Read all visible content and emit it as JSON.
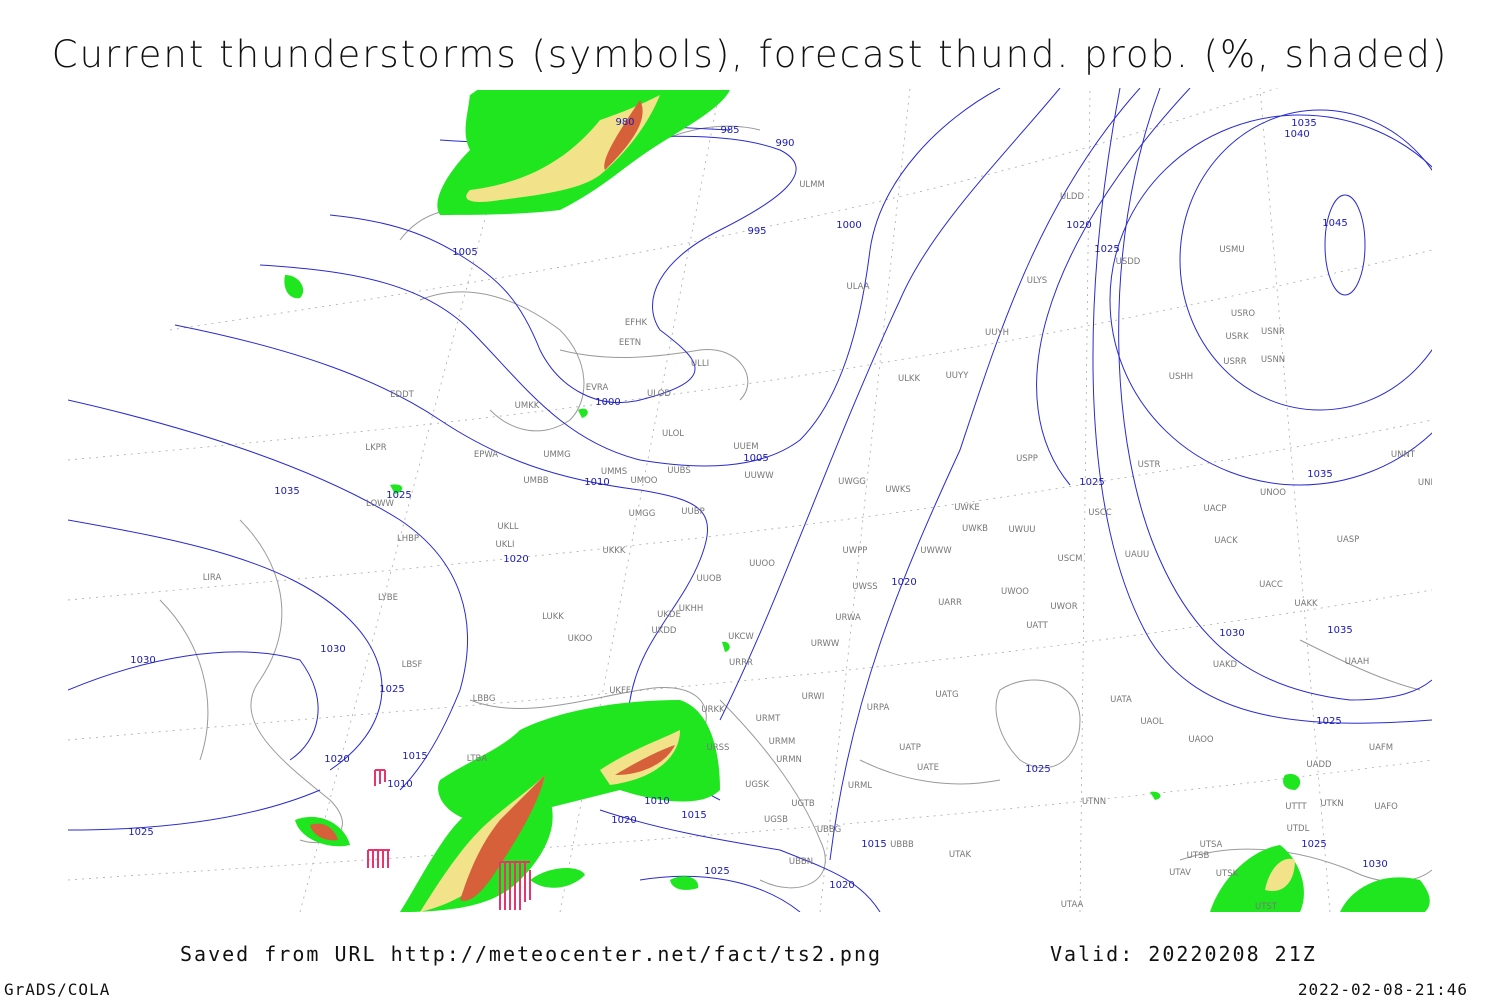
{
  "title": "Current thunderstorms (symbols), forecast thund. prob. (%, shaded)",
  "footer": {
    "saved": "Saved from URL http://meteocenter.net/fact/ts2.png",
    "valid": "Valid: 20220208 21Z",
    "software": "GrADS/COLA",
    "timestamp": "2022-02-08-21:46"
  },
  "isobar_labels": [
    "980",
    "985",
    "990",
    "995",
    "1000",
    "1005",
    "1020",
    "1025",
    "1035",
    "1040",
    "1045",
    "1000",
    "1005",
    "1010",
    "1035",
    "1025",
    "1020",
    "1025",
    "1035",
    "1020",
    "1030",
    "1035",
    "1030",
    "1030",
    "1025",
    "1025",
    "1025",
    "1020",
    "1015",
    "1010",
    "1010",
    "1015",
    "1020",
    "1025",
    "1015",
    "1025",
    "1020",
    "1025",
    "1030"
  ],
  "stations": [
    "ULMM",
    "ULDD",
    "USDD",
    "USMU",
    "ULAA",
    "ULLI",
    "EFHK",
    "EETN",
    "EVRA",
    "ULOD",
    "EDDT",
    "UMKK",
    "ULOL",
    "UUEM",
    "EPWA",
    "UMMG",
    "LKPR",
    "UMMS",
    "UUBS",
    "UUWW",
    "UMBB",
    "UMOO",
    "UWGG",
    "UWKS",
    "UWKE",
    "USCC",
    "UACP",
    "UNOO",
    "UNBB",
    "USTR",
    "USPP",
    "ULKK",
    "UUYY",
    "UUYH",
    "ULYS",
    "USRO",
    "USNR",
    "USRK",
    "USRR",
    "USNN",
    "USHH",
    "UNNT",
    "LOWW",
    "UKLL",
    "UMGG",
    "UUBP",
    "LHBP",
    "UKLI",
    "UKKK",
    "UWPP",
    "UWWW",
    "UWKB",
    "UWUU",
    "USCM",
    "UAUU",
    "UACK",
    "UASP",
    "LIRA",
    "UUOO",
    "UUOB",
    "UWSS",
    "UWOO",
    "UWOR",
    "UACC",
    "UATT",
    "UARR",
    "LYBE",
    "LUKK",
    "UKHH",
    "UKDE",
    "UKDD",
    "UKOO",
    "UKCW",
    "URWA",
    "URWW",
    "UAKK",
    "LBSF",
    "URRR",
    "UAKD",
    "UAAH",
    "UKFF",
    "URWI",
    "UATG",
    "LBBG",
    "URKK",
    "URMT",
    "UATA",
    "UAOL",
    "URPA",
    "URSS",
    "URMM",
    "UATE",
    "UATP",
    "URMN",
    "UAOO",
    "UADD",
    "UAFM",
    "LTBA",
    "UGSK",
    "URML",
    "UGTB",
    "UTNN",
    "UAFO",
    "UTKN",
    "UTTT",
    "UTDL",
    "UBBG",
    "UGSB",
    "UBBB",
    "UTAK",
    "UTSA",
    "UTSB",
    "UBBN",
    "UTAV",
    "UTSK",
    "UTAA",
    "UTST"
  ]
}
